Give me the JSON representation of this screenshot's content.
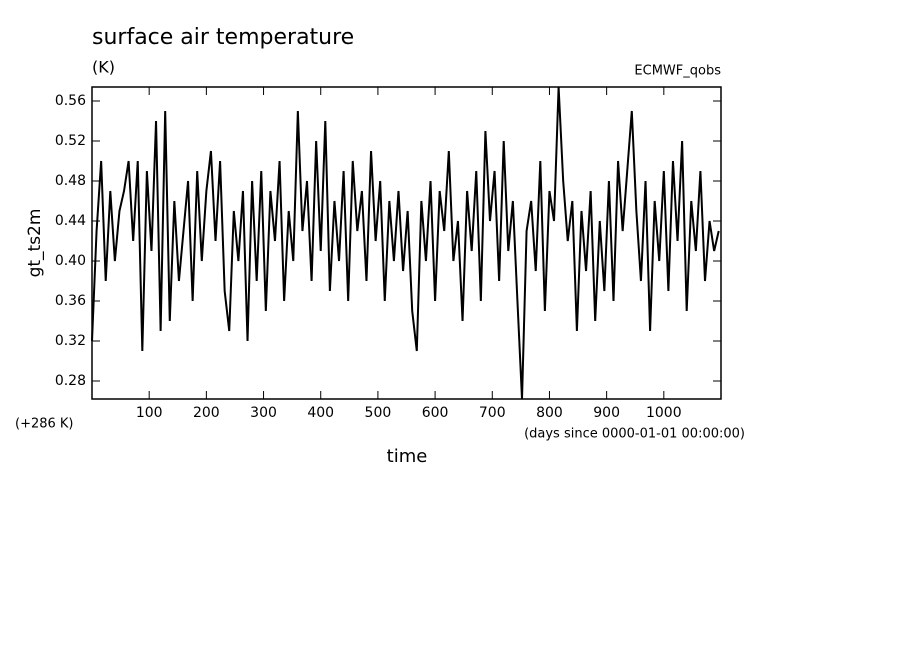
{
  "chart_data": {
    "type": "line",
    "title": "surface air temperature",
    "subtitle": "(K)",
    "source": "ECMWF_qobs",
    "y_label": "gt_ts2m",
    "y_offset_label": "(+286 K)",
    "x_units_label": "(days since 0000-01-01 00:00:00)",
    "x_label": "time",
    "xlim": [
      0,
      1100
    ],
    "ylim": [
      0.262,
      0.574
    ],
    "xticks": [
      100,
      200,
      300,
      400,
      500,
      600,
      700,
      800,
      900,
      1000
    ],
    "yticks": [
      0.28,
      0.32,
      0.36,
      {
        "value": 0.4,
        "label": "0.40"
      },
      0.44,
      0.48,
      0.52,
      0.56
    ],
    "grid": false,
    "color": "#000000",
    "x": [
      0,
      8,
      16,
      24,
      32,
      40,
      48,
      56,
      64,
      72,
      80,
      88,
      96,
      104,
      112,
      120,
      128,
      136,
      144,
      152,
      160,
      168,
      176,
      184,
      192,
      200,
      208,
      216,
      224,
      232,
      240,
      248,
      256,
      264,
      272,
      280,
      288,
      296,
      304,
      312,
      320,
      328,
      336,
      344,
      352,
      360,
      368,
      376,
      384,
      392,
      400,
      408,
      416,
      424,
      432,
      440,
      448,
      456,
      464,
      472,
      480,
      488,
      496,
      504,
      512,
      520,
      528,
      536,
      544,
      552,
      560,
      568,
      576,
      584,
      592,
      600,
      608,
      616,
      624,
      632,
      640,
      648,
      656,
      664,
      672,
      680,
      688,
      696,
      704,
      712,
      720,
      728,
      736,
      744,
      752,
      760,
      768,
      776,
      784,
      792,
      800,
      808,
      816,
      824,
      832,
      840,
      848,
      856,
      864,
      872,
      880,
      888,
      896,
      904,
      912,
      920,
      928,
      936,
      944,
      952,
      960,
      968,
      976,
      984,
      992,
      1000,
      1008,
      1016,
      1024,
      1032,
      1040,
      1048,
      1056,
      1064,
      1072,
      1080,
      1088,
      1096
    ],
    "values": [
      0.32,
      0.43,
      0.5,
      0.38,
      0.47,
      0.4,
      0.45,
      0.47,
      0.5,
      0.42,
      0.5,
      0.31,
      0.49,
      0.41,
      0.54,
      0.33,
      0.55,
      0.34,
      0.46,
      0.38,
      0.43,
      0.48,
      0.36,
      0.49,
      0.4,
      0.47,
      0.51,
      0.42,
      0.5,
      0.37,
      0.33,
      0.45,
      0.4,
      0.47,
      0.32,
      0.48,
      0.38,
      0.49,
      0.35,
      0.47,
      0.42,
      0.5,
      0.36,
      0.45,
      0.4,
      0.55,
      0.43,
      0.48,
      0.38,
      0.52,
      0.41,
      0.54,
      0.37,
      0.46,
      0.4,
      0.49,
      0.36,
      0.5,
      0.43,
      0.47,
      0.38,
      0.51,
      0.42,
      0.48,
      0.36,
      0.46,
      0.4,
      0.47,
      0.39,
      0.45,
      0.35,
      0.31,
      0.46,
      0.4,
      0.48,
      0.36,
      0.47,
      0.43,
      0.51,
      0.4,
      0.44,
      0.34,
      0.47,
      0.41,
      0.49,
      0.36,
      0.53,
      0.44,
      0.49,
      0.38,
      0.52,
      0.41,
      0.46,
      0.36,
      0.262,
      0.43,
      0.46,
      0.39,
      0.5,
      0.35,
      0.47,
      0.44,
      0.574,
      0.48,
      0.42,
      0.46,
      0.33,
      0.45,
      0.39,
      0.47,
      0.34,
      0.44,
      0.37,
      0.48,
      0.36,
      0.5,
      0.43,
      0.49,
      0.55,
      0.45,
      0.38,
      0.48,
      0.33,
      0.46,
      0.4,
      0.49,
      0.37,
      0.5,
      0.42,
      0.52,
      0.35,
      0.46,
      0.41,
      0.49,
      0.38,
      0.44,
      0.41,
      0.43
    ]
  }
}
